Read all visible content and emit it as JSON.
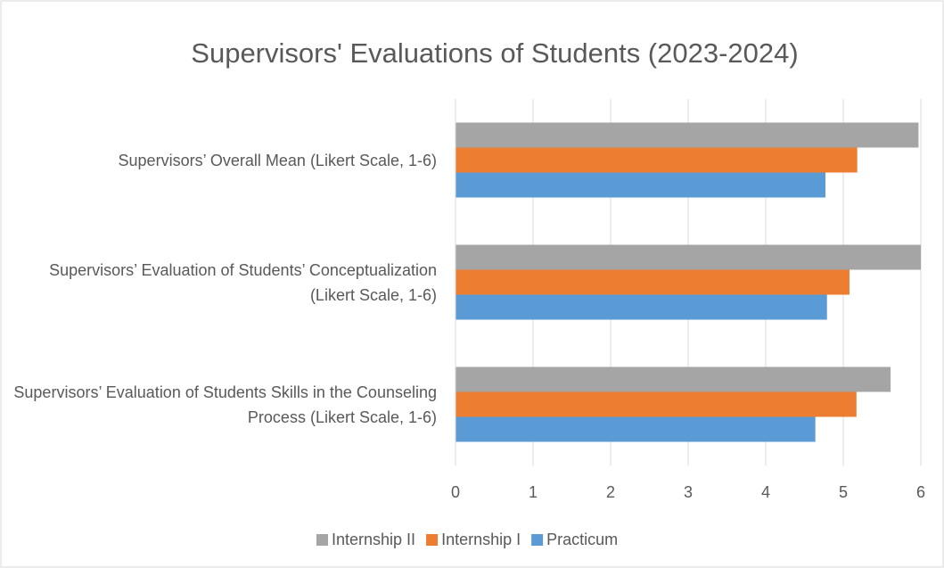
{
  "chart_data": {
    "type": "hbar",
    "title": "Supervisors' Evaluations of Students (2023-2024)",
    "categories": [
      "Supervisors’ Overall Mean (Likert Scale, 1-6)",
      "Supervisors’ Evaluation of Students’ Conceptualization (Likert Scale, 1-6)",
      "Supervisors’ Evaluation of Students Skills in the Counseling Process (Likert Scale, 1-6)"
    ],
    "series": [
      {
        "name": "Internship II",
        "color": "#a5a5a5",
        "values": [
          5.97,
          6.0,
          5.61
        ]
      },
      {
        "name": "Internship I",
        "color": "#ed7d31",
        "values": [
          5.18,
          5.08,
          5.17
        ]
      },
      {
        "name": "Practicum",
        "color": "#5b9bd5",
        "values": [
          4.77,
          4.79,
          4.64
        ]
      }
    ],
    "xlim": [
      0,
      6
    ],
    "xticks": [
      0,
      1,
      2,
      3,
      4,
      5,
      6
    ],
    "grid": true,
    "legend": "bottom"
  }
}
